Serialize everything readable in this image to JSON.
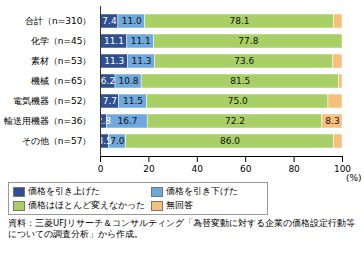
{
  "chart_data": {
    "type": "bar",
    "orientation": "horizontal",
    "stacked": true,
    "data_labels": true,
    "grid": false,
    "legend": "bottom",
    "categories": [
      "合計（n=310）",
      "化学（n=45）",
      "素材（n=53）",
      "機械（n=65）",
      "電気機器（n=52）",
      "輸送用機器（n=36）",
      "その他（n=57）"
    ],
    "series": [
      {
        "name": "価格を引き上げた",
        "color": "#2f4f8f",
        "values": [
          7.4,
          11.1,
          11.3,
          6.2,
          7.7,
          2.8,
          3.5
        ],
        "value_labels": [
          "7.4",
          "11.1",
          "11.3",
          "6.2",
          "7.7",
          "2.8",
          "3.5"
        ]
      },
      {
        "name": "価格を引き下げた",
        "color": "#6fa8dc",
        "values": [
          11.0,
          11.1,
          11.3,
          10.8,
          11.5,
          16.7,
          7.0
        ],
        "value_labels": [
          "11.0",
          "11.1",
          "11.3",
          "10.8",
          "11.5",
          "16.7",
          "7.0"
        ]
      },
      {
        "name": "価格はほとんど変えなかった",
        "color": "#a9d066",
        "values": [
          78.1,
          77.8,
          73.6,
          81.5,
          75.0,
          72.2,
          86.0
        ],
        "value_labels": [
          "78.1",
          "77.8",
          "73.6",
          "81.5",
          "75.0",
          "72.2",
          "86.0"
        ]
      },
      {
        "name": "無回答",
        "color": "#f6c07c",
        "values": [
          3.5,
          0,
          3.8,
          1.5,
          5.8,
          8.3,
          3.5
        ],
        "value_labels": [
          null,
          null,
          null,
          null,
          null,
          "8.3",
          null
        ]
      }
    ],
    "xlim": [
      0,
      100
    ],
    "xticks": [
      0,
      20,
      40,
      60,
      80,
      100
    ],
    "xlabel": "(%)",
    "caption": "資料：三菱UFJリサーチ＆コンサルティング「為替変動に対する企業の価格設定行動等についての調査分析」から作成。"
  }
}
